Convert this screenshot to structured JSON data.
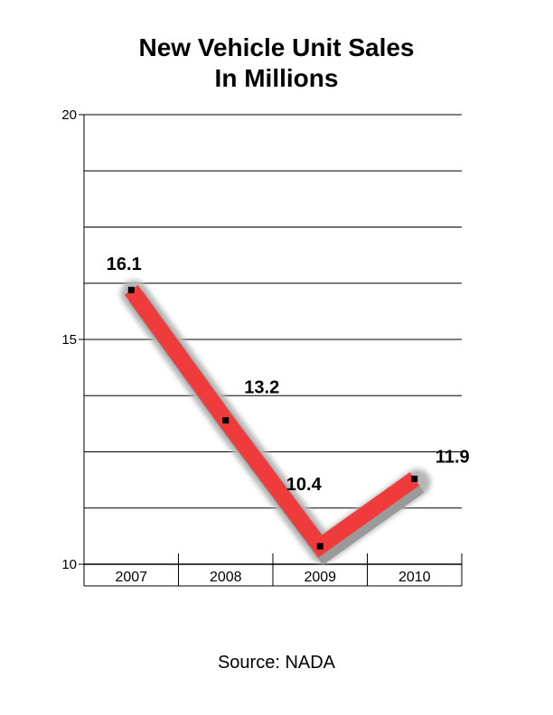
{
  "chart_data": {
    "type": "line",
    "title": [
      "New Vehicle Unit Sales",
      "In Millions"
    ],
    "categories": [
      "2007",
      "2008",
      "2009",
      "2010"
    ],
    "values": [
      16.1,
      13.2,
      10.4,
      11.9
    ],
    "data_labels": [
      "16.1",
      "13.2",
      "10.4",
      "11.9"
    ],
    "ylim": [
      10,
      20
    ],
    "y_ticks": [
      10,
      15,
      20
    ],
    "y_tick_labels": [
      "10",
      "15",
      "20"
    ],
    "grid": true,
    "line_color": "#ef3b3b",
    "shadow_color": "#9a9a9a",
    "source": "Source: NADA"
  }
}
